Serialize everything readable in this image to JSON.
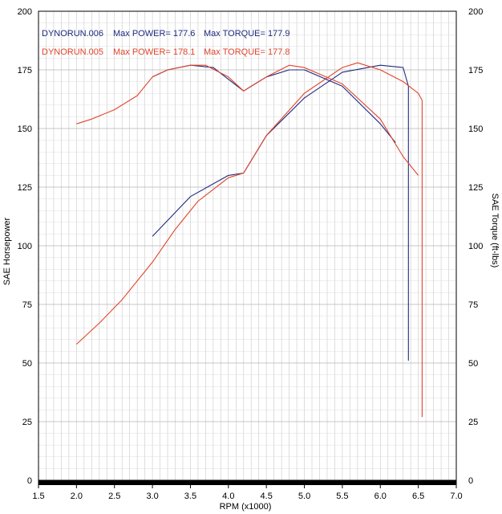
{
  "chart_data": {
    "type": "line",
    "xlabel": "RPM (x1000)",
    "ylabel": "SAE Horsepower",
    "ylabel_right": "SAE Torque (ft-lbs)",
    "xlim": [
      1.5,
      7.0
    ],
    "ylim": [
      0,
      200
    ],
    "ylim_right": [
      0,
      200
    ],
    "x_ticks": [
      "1.5",
      "2.0",
      "2.5",
      "3.0",
      "3.5",
      "4.0",
      "4.5",
      "5.0",
      "5.5",
      "6.0",
      "6.5",
      "7.0"
    ],
    "y_ticks": [
      "0",
      "25",
      "50",
      "75",
      "100",
      "125",
      "150",
      "175",
      "200"
    ],
    "y_ticks_right": [
      "0",
      "25",
      "50",
      "75",
      "100",
      "125",
      "150",
      "175",
      "200"
    ],
    "grid": true,
    "legend": [
      {
        "run": "DYNORUN.006",
        "power_label": "Max POWER= 177.6",
        "torque_label": "Max TORQUE= 177.9",
        "color": "#1f2a80"
      },
      {
        "run": "DYNORUN.005",
        "power_label": "Max POWER= 178.1",
        "torque_label": "Max TORQUE= 177.8",
        "color": "#e0442a"
      }
    ],
    "series": [
      {
        "run": "DYNORUN.006",
        "measure": "power",
        "color": "#1f2a80",
        "x": [
          3.0,
          3.5,
          4.0,
          4.2,
          4.5,
          5.0,
          5.5,
          6.0,
          6.3,
          6.37,
          6.37
        ],
        "y": [
          104,
          121,
          130,
          131,
          147,
          163,
          174,
          177,
          176,
          168,
          51
        ]
      },
      {
        "run": "DYNORUN.005",
        "measure": "power",
        "color": "#e0442a",
        "x": [
          2.0,
          2.3,
          2.6,
          3.0,
          3.3,
          3.6,
          4.0,
          4.2,
          4.5,
          5.0,
          5.5,
          5.7,
          6.0,
          6.3,
          6.5,
          6.55,
          6.55
        ],
        "y": [
          58,
          67,
          77,
          93,
          107,
          119,
          129,
          131,
          147,
          165,
          176,
          178,
          175,
          170,
          165,
          162,
          27
        ]
      },
      {
        "run": "DYNORUN.006",
        "measure": "torque",
        "color": "#1f2a80",
        "x": [
          3.0,
          3.2,
          3.5,
          3.8,
          4.0,
          4.2,
          4.3,
          4.5,
          4.8,
          5.0,
          5.5,
          6.0,
          6.2
        ],
        "y": [
          172,
          175,
          177,
          176,
          171,
          166,
          168,
          172,
          175,
          175,
          168,
          152,
          144
        ]
      },
      {
        "run": "DYNORUN.005",
        "measure": "torque",
        "color": "#e0442a",
        "x": [
          2.0,
          2.2,
          2.5,
          2.8,
          3.0,
          3.2,
          3.5,
          3.7,
          4.0,
          4.2,
          4.5,
          4.8,
          5.0,
          5.5,
          6.0,
          6.3,
          6.5
        ],
        "y": [
          152,
          154,
          158,
          164,
          172,
          175,
          177,
          177,
          172,
          166,
          172,
          177,
          176,
          169,
          154,
          138,
          130
        ]
      }
    ]
  }
}
